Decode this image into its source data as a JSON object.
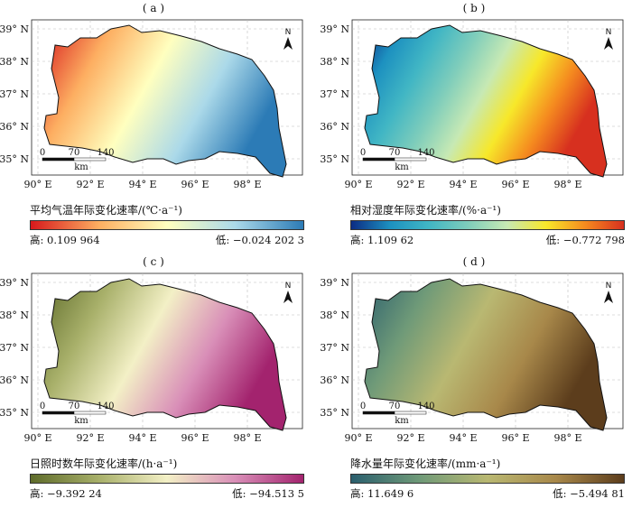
{
  "grid": {
    "lat_labels": [
      "39° N",
      "38° N",
      "37° N",
      "36° N",
      "35° N"
    ],
    "lon_labels": [
      "90° E",
      "92° E",
      "94° E",
      "96° E",
      "98° E"
    ]
  },
  "north_label": "N",
  "scalebar": {
    "ticks": [
      "0",
      "70",
      "140"
    ],
    "unit": "km"
  },
  "panels": [
    {
      "label": "( a )",
      "legend_title": "平均气温年际变化速率/(℃·a⁻¹)",
      "high_label": "高: 0.109 964",
      "low_label": "低: −0.024 202 3",
      "colors": [
        "#d7191c",
        "#fdae61",
        "#ffffbf",
        "#abd9e9",
        "#2c7bb6"
      ]
    },
    {
      "label": "( b )",
      "legend_title": "相对湿度年际变化速率/(%·a⁻¹)",
      "high_label": "高: 1.109 62",
      "low_label": "低: −0.772 798",
      "colors": [
        "#0c2c84",
        "#1d91c0",
        "#41b6c4",
        "#7fcdbb",
        "#c7e9b4",
        "#f7e82a",
        "#f58b1f",
        "#d7301f"
      ]
    },
    {
      "label": "( c )",
      "legend_title": "日照时数年际变化速率/(h·a⁻¹)",
      "high_label": "高: −9.392 24",
      "low_label": "低: −94.513 5",
      "colors": [
        "#5e6b2a",
        "#a8b06a",
        "#f3f0c6",
        "#d98fb8",
        "#a3236e"
      ]
    },
    {
      "label": "( d )",
      "legend_title": "降水量年际变化速率/(mm·a⁻¹)",
      "high_label": "高: 11.649 6",
      "low_label": "低: −5.494 81",
      "colors": [
        "#2b5f6e",
        "#6f9a78",
        "#b9b872",
        "#a8884a",
        "#5c3d1c"
      ]
    }
  ]
}
